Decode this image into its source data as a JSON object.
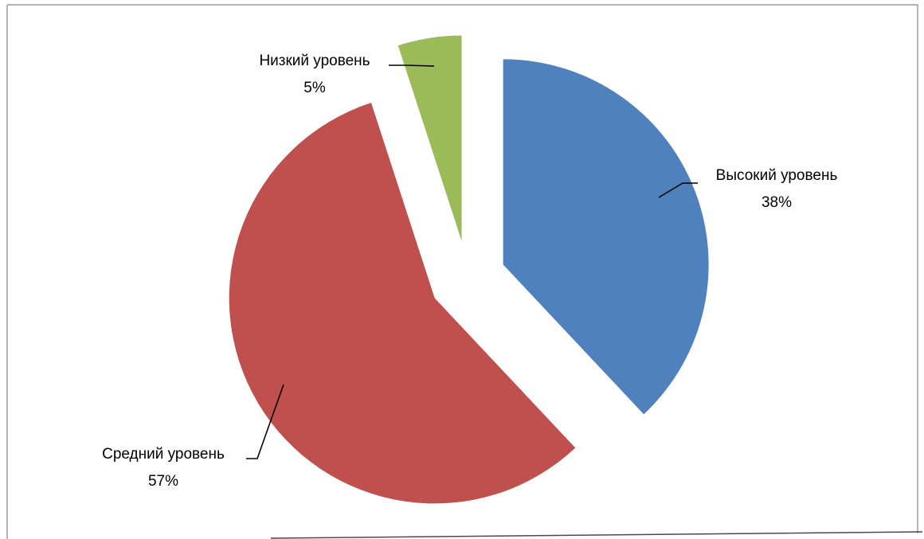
{
  "chart_data": {
    "type": "pie",
    "title": "",
    "slices": [
      {
        "label": "Высокий уровень",
        "percent_label": "38%",
        "value": 38,
        "color": "#4F81BD"
      },
      {
        "label": "Средний уровень",
        "percent_label": "57%",
        "value": 57,
        "color": "#C0504D"
      },
      {
        "label": "Низкий уровень",
        "percent_label": "5%",
        "value": 5,
        "color": "#9BBB59"
      }
    ],
    "start_angle_deg": 0,
    "direction": "clockwise",
    "exploded": true,
    "legend": "none",
    "data_labels": "outside-with-leader-lines"
  }
}
